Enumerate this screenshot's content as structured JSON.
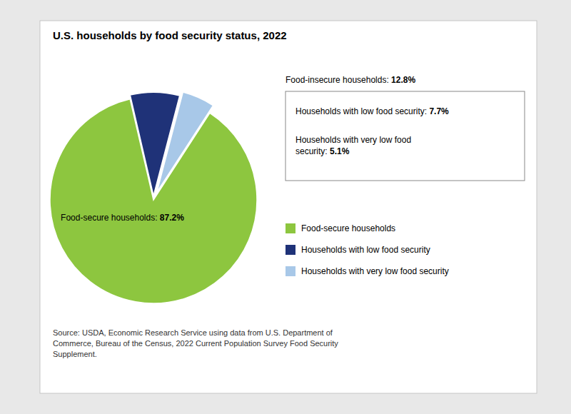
{
  "chart_data": {
    "type": "pie",
    "title": "U.S. households by food security status, 2022",
    "categories": [
      "Food-secure households",
      "Households with low food security",
      "Households with very low food security"
    ],
    "values": [
      87.2,
      7.7,
      5.1
    ],
    "colors": [
      "#8dc63f",
      "#1f3278",
      "#a8c8e8"
    ],
    "legend": "lower right",
    "annotations": [
      {
        "text": "Food-secure households: ",
        "label": "87.2%"
      },
      {
        "text": "Food-insecure households: ",
        "label": "12.8%"
      },
      {
        "text": "Households with low food security: ",
        "label": "7.7%"
      },
      {
        "text": "Households with very low food\nsecurity: ",
        "label": "5.1%"
      }
    ],
    "source": "Source: USDA, Economic Research Service using data from U.S. Department of\nCommerce, Bureau of the Census, 2022 Current Population Survey Food Security\nSupplement."
  }
}
